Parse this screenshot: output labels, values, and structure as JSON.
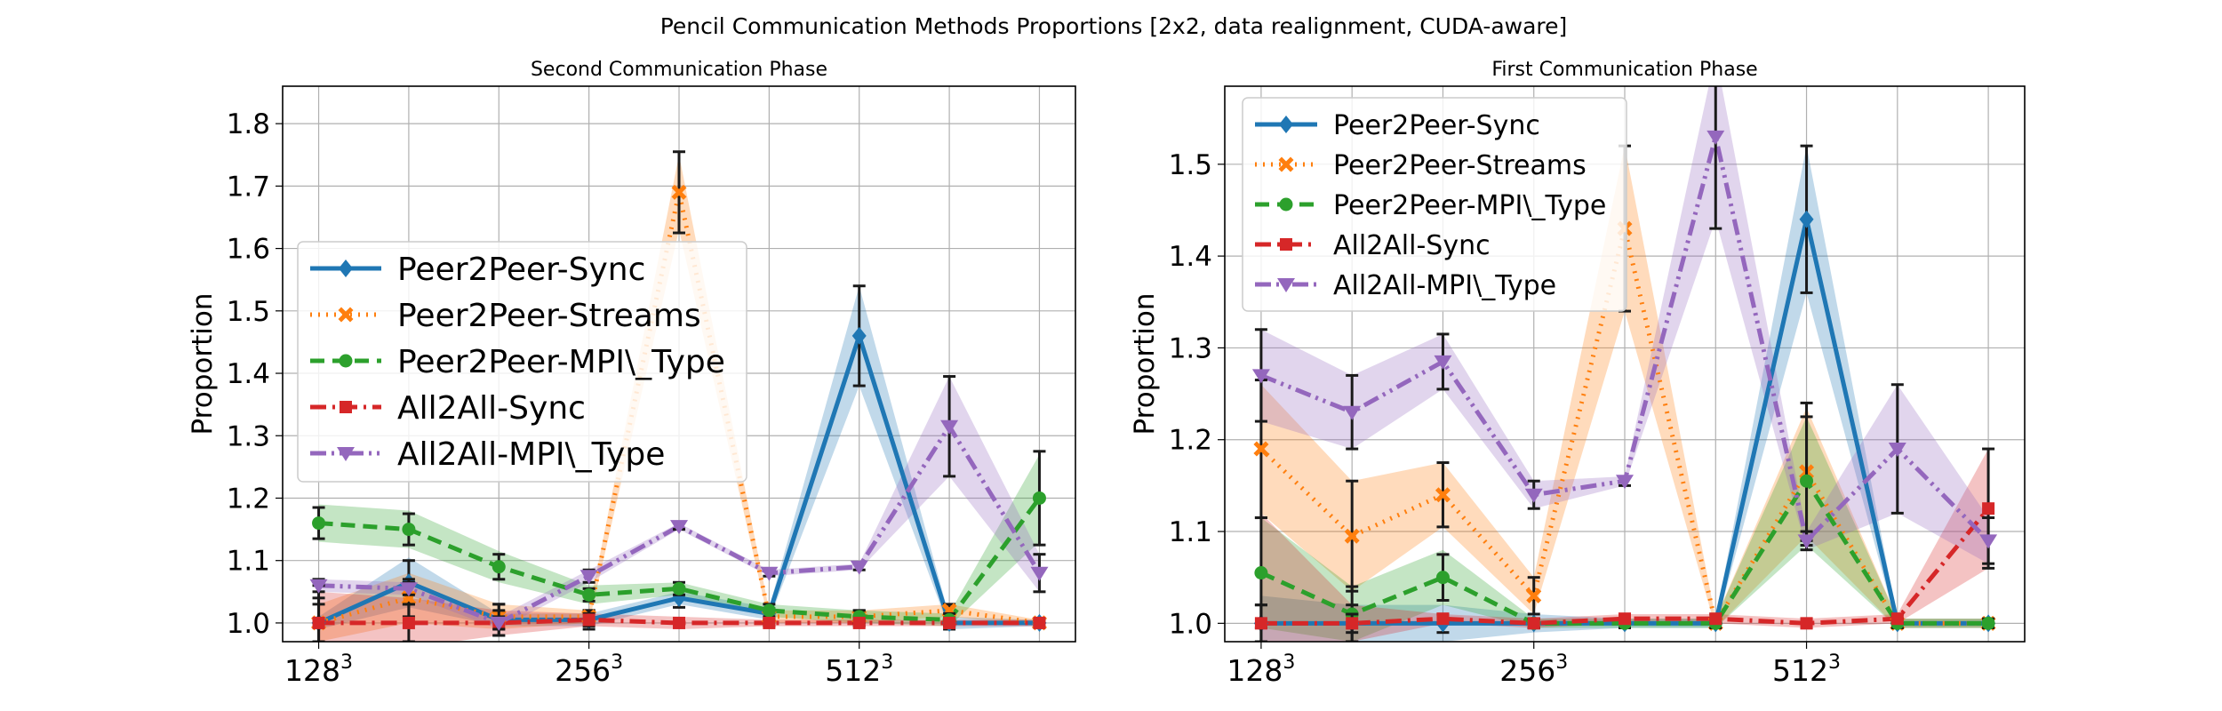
{
  "title": "Pencil Communication Methods Proportions [2x2, data realignment, CUDA-aware]",
  "colors": {
    "sync": "#1f77b4",
    "streams": "#ff7f0e",
    "mpitype": "#2ca02c",
    "a2async": "#d62728",
    "a2ampitype": "#9467bd",
    "grid": "#b0b0b0",
    "errorbar": "#1a1a1a"
  },
  "chart_data": [
    {
      "type": "line",
      "title": "Second Communication Phase",
      "xlabel": "",
      "ylabel": "Proportion",
      "x": [
        0,
        1,
        2,
        3,
        4,
        5,
        6,
        7,
        8
      ],
      "xticks": [
        {
          "base": "128",
          "exp": "3",
          "x": 0
        },
        {
          "base": "256",
          "exp": "3",
          "x": 3
        },
        {
          "base": "512",
          "exp": "3",
          "x": 6
        }
      ],
      "xlim": [
        -0.4,
        8.4
      ],
      "ylim": [
        0.97,
        1.86
      ],
      "yticks": [
        1.0,
        1.1,
        1.2,
        1.3,
        1.4,
        1.5,
        1.6,
        1.7,
        1.8
      ],
      "grid": true,
      "legend_position": "center-left",
      "legend_size": "large",
      "series": [
        {
          "name": "Peer2Peer-Sync",
          "color": "sync",
          "marker": "diamond",
          "dash": "solid",
          "values": [
            1.0,
            1.065,
            1.005,
            1.005,
            1.04,
            1.015,
            1.46,
            1.0,
            1.0
          ],
          "band": [
            0.01,
            0.04,
            0.01,
            0.01,
            0.01,
            0.01,
            0.08,
            0.01,
            0.005
          ],
          "errorbars": [
            0.04,
            0.035,
            0.025,
            0.015,
            0.015,
            0.008,
            0.08,
            0.01,
            0.005
          ]
        },
        {
          "name": "Peer2Peer-Streams",
          "color": "streams",
          "marker": "x",
          "dash": "dotted",
          "values": [
            1.0,
            1.04,
            1.01,
            1.01,
            1.69,
            1.01,
            1.01,
            1.02,
            1.0
          ],
          "band": [
            0.03,
            0.04,
            0.02,
            0.01,
            0.06,
            0.01,
            0.01,
            0.01,
            0.005
          ],
          "errorbars": [
            0.03,
            0.03,
            0.02,
            0.01,
            0.065,
            0.01,
            0.01,
            0.01,
            0.005
          ]
        },
        {
          "name": "Peer2Peer-MPI\\_Type",
          "color": "mpitype",
          "marker": "circle",
          "dash": "dashed",
          "values": [
            1.16,
            1.15,
            1.09,
            1.045,
            1.055,
            1.02,
            1.01,
            1.005,
            1.2
          ],
          "band": [
            0.03,
            0.03,
            0.025,
            0.015,
            0.01,
            0.01,
            0.01,
            0.01,
            0.07
          ],
          "errorbars": [
            0.025,
            0.025,
            0.02,
            0.01,
            0.01,
            0.01,
            0.01,
            0.01,
            0.075
          ]
        },
        {
          "name": "All2All-Sync",
          "color": "a2async",
          "marker": "square",
          "dash": "dashdot",
          "values": [
            1.0,
            1.0,
            1.0,
            1.005,
            1.0,
            1.0,
            1.0,
            1.0,
            1.0
          ],
          "band": [
            0.05,
            0.04,
            0.02,
            0.01,
            0.01,
            0.005,
            0.005,
            0.005,
            0.005
          ],
          "errorbars": [
            0.06,
            0.03,
            0.02,
            0.01,
            0.005,
            0.005,
            0.005,
            0.005,
            0.005
          ]
        },
        {
          "name": "All2All-MPI\\_Type",
          "color": "a2ampitype",
          "marker": "triangle-down",
          "dash": "dashdotdot",
          "values": [
            1.06,
            1.055,
            1.0,
            1.075,
            1.155,
            1.08,
            1.09,
            1.315,
            1.08
          ],
          "band": [
            0.01,
            0.01,
            0.01,
            0.01,
            0.005,
            0.005,
            0.005,
            0.08,
            0.03
          ],
          "errorbars": [
            0.01,
            0.01,
            0.01,
            0.01,
            0.005,
            0.005,
            0.005,
            0.08,
            0.03
          ]
        }
      ]
    },
    {
      "type": "line",
      "title": "First Communication Phase",
      "xlabel": "",
      "ylabel": "Proportion",
      "x": [
        0,
        1,
        2,
        3,
        4,
        5,
        6,
        7,
        8
      ],
      "xticks": [
        {
          "base": "128",
          "exp": "3",
          "x": 0
        },
        {
          "base": "256",
          "exp": "3",
          "x": 3
        },
        {
          "base": "512",
          "exp": "3",
          "x": 6
        }
      ],
      "xlim": [
        -0.4,
        8.4
      ],
      "ylim": [
        0.98,
        1.585
      ],
      "yticks": [
        1.0,
        1.1,
        1.2,
        1.3,
        1.4,
        1.5
      ],
      "grid": true,
      "legend_position": "top-left",
      "legend_size": "small",
      "series": [
        {
          "name": "Peer2Peer-Sync",
          "color": "sync",
          "marker": "diamond",
          "dash": "solid",
          "values": [
            1.0,
            1.0,
            1.0,
            1.0,
            1.0,
            1.0,
            1.44,
            1.0,
            1.0
          ],
          "band": [
            0.03,
            0.02,
            0.02,
            0.01,
            0.005,
            0.005,
            0.08,
            0.005,
            0.005
          ],
          "errorbars": [
            0.02,
            0.02,
            0.01,
            0.005,
            0.005,
            0.005,
            0.08,
            0.005,
            0.005
          ]
        },
        {
          "name": "Peer2Peer-Streams",
          "color": "streams",
          "marker": "x",
          "dash": "dotted",
          "values": [
            1.19,
            1.095,
            1.14,
            1.03,
            1.43,
            1.0,
            1.165,
            1.0,
            1.0
          ],
          "band": [
            0.07,
            0.06,
            0.035,
            0.02,
            0.09,
            0.005,
            0.07,
            0.005,
            0.005
          ],
          "errorbars": [
            0.075,
            0.06,
            0.035,
            0.02,
            0.09,
            0.005,
            0.075,
            0.005,
            0.005
          ]
        },
        {
          "name": "Peer2Peer-MPI\\_Type",
          "color": "mpitype",
          "marker": "circle",
          "dash": "dashed",
          "values": [
            1.055,
            1.01,
            1.05,
            1.0,
            1.0,
            1.0,
            1.155,
            1.0,
            1.0
          ],
          "band": [
            0.06,
            0.03,
            0.03,
            0.005,
            0.005,
            0.005,
            0.07,
            0.005,
            0.005
          ],
          "errorbars": [
            0.06,
            0.03,
            0.025,
            0.005,
            0.005,
            0.005,
            0.07,
            0.005,
            0.005
          ]
        },
        {
          "name": "All2All-Sync",
          "color": "a2async",
          "marker": "square",
          "dash": "dashdot",
          "values": [
            1.0,
            1.0,
            1.005,
            1.0,
            1.005,
            1.005,
            1.0,
            1.005,
            1.125
          ],
          "band": [
            0.12,
            0.02,
            0.005,
            0.005,
            0.005,
            0.005,
            0.005,
            0.005,
            0.065
          ],
          "errorbars": [
            0.02,
            0.01,
            0.005,
            0.005,
            0.005,
            0.005,
            0.005,
            0.005,
            0.065
          ]
        },
        {
          "name": "All2All-MPI\\_Type",
          "color": "a2ampitype",
          "marker": "triangle-down",
          "dash": "dashdotdot",
          "values": [
            1.27,
            1.23,
            1.285,
            1.14,
            1.155,
            1.53,
            1.09,
            1.19,
            1.09
          ],
          "band": [
            0.05,
            0.04,
            0.03,
            0.015,
            0.005,
            0.09,
            0.01,
            0.07,
            0.025
          ],
          "errorbars": [
            0.05,
            0.04,
            0.03,
            0.015,
            0.005,
            0.1,
            0.01,
            0.07,
            0.025
          ]
        }
      ]
    }
  ]
}
